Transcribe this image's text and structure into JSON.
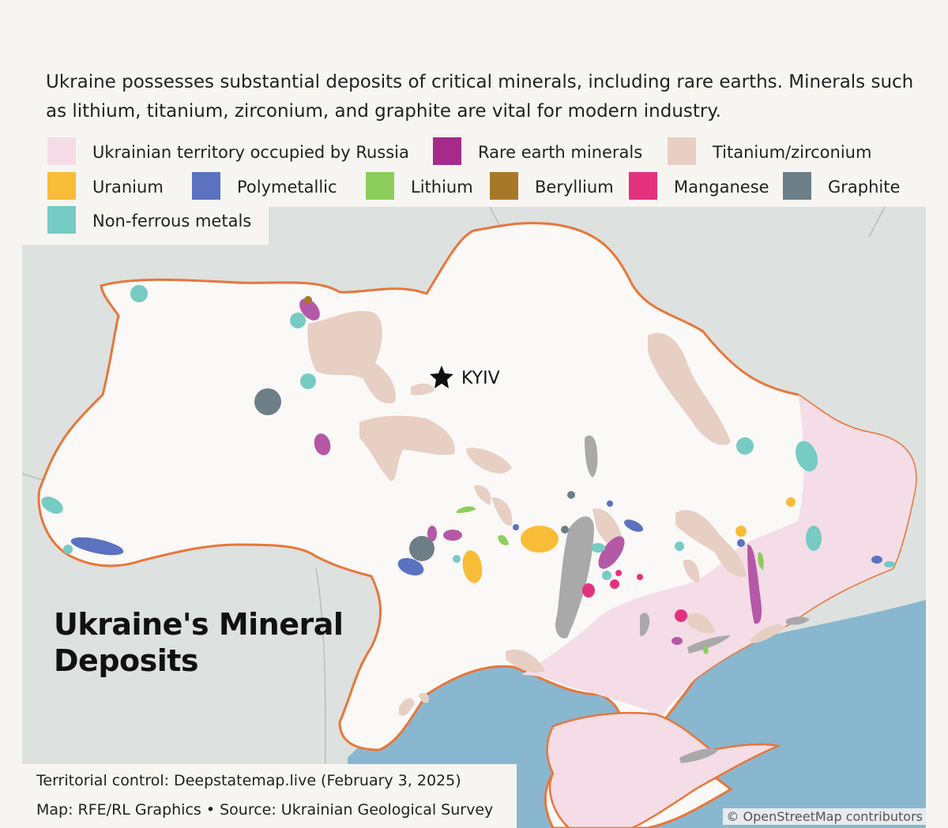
{
  "intro_text": "Ukraine possesses substantial deposits of critical minerals, including rare earths. Minerals such as lithium, titanium, zirconium, and graphite are vital for modern industry.",
  "legend": [
    {
      "label": "Ukrainian territory occupied by Russia",
      "color": "#f4dde6"
    },
    {
      "label": "Rare earth minerals",
      "color": "#a52a8c"
    },
    {
      "label": "Titanium/zirconium",
      "color": "#e8cfc3"
    },
    {
      "label": "Uranium",
      "color": "#f9bc38"
    },
    {
      "label": "Polymetallic",
      "color": "#5b72c0"
    },
    {
      "label": "Lithium",
      "color": "#8ccd5b"
    },
    {
      "label": "Beryllium",
      "color": "#a8782a"
    },
    {
      "label": "Manganese",
      "color": "#e4317e"
    },
    {
      "label": "Graphite",
      "color": "#6e7e86"
    },
    {
      "label": "Non-ferrous metals",
      "color": "#76cbc3"
    }
  ],
  "map": {
    "title_line1": "Ukraine's Mineral",
    "title_line2": "Deposits",
    "capital_label": "KYIV",
    "colors": {
      "land_outside": "#dde1df",
      "ukraine": "#fbf9f7",
      "border": "#e8763a",
      "sea": "#89b7cf",
      "gray_deposit": "#a9a9a9"
    }
  },
  "source": {
    "line1": "Territorial control: Deepstatemap.live (February 3, 2025)",
    "line2": "Map: RFE/RL Graphics • Source: Ukrainian Geological Survey"
  },
  "attribution": "© OpenStreetMap contributors"
}
